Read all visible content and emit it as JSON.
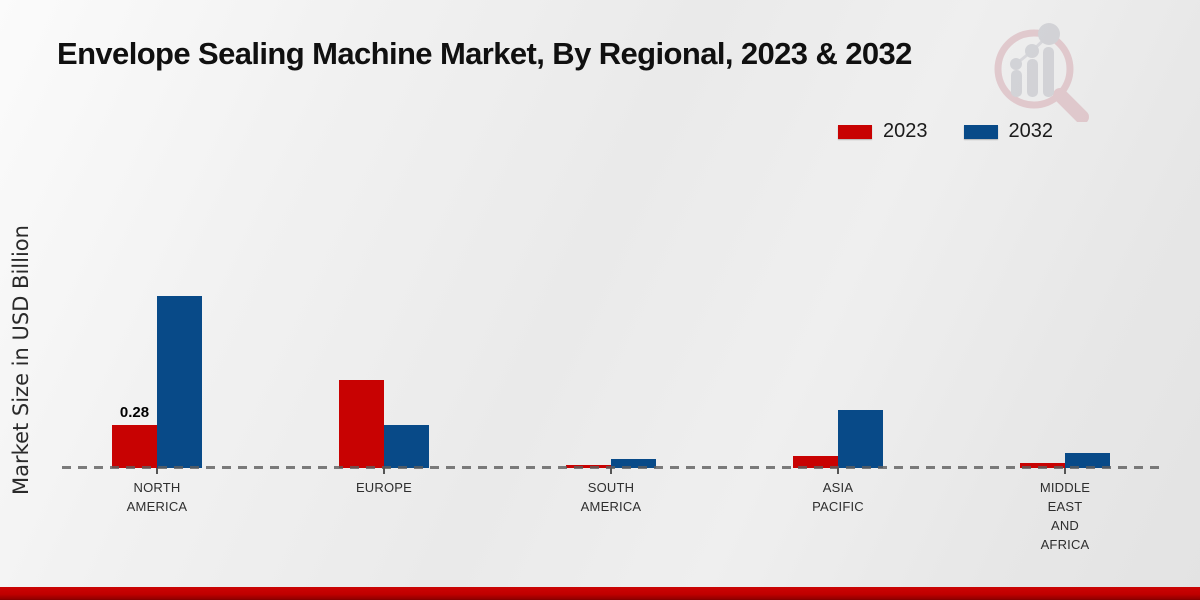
{
  "header": {
    "title": "Envelope Sealing Machine Market, By Regional, 2023 & 2032"
  },
  "watermark_name": "market-research-future-logo",
  "footer": {
    "accent_bar_color": "#c00000"
  },
  "chart_data": {
    "type": "bar",
    "title": "Envelope Sealing Machine Market, By Regional, 2023 & 2032",
    "xlabel": "",
    "ylabel": "Market Size in USD Billion",
    "unit": "USD Billion",
    "categories": [
      "NORTH AMERICA",
      "EUROPE",
      "SOUTH AMERICA",
      "ASIA PACIFIC",
      "MIDDLE EAST AND AFRICA"
    ],
    "categories_display": [
      "NORTH\nAMERICA",
      "EUROPE",
      "SOUTH\nAMERICA",
      "ASIA\nPACIFIC",
      "MIDDLE\nEAST\nAND\nAFRICA"
    ],
    "series": [
      {
        "name": "2023",
        "color": "#c80202",
        "values": [
          0.28,
          0.57,
          0.02,
          0.08,
          0.03
        ]
      },
      {
        "name": "2032",
        "color": "#084a88",
        "values": [
          1.12,
          0.28,
          0.06,
          0.38,
          0.1
        ]
      }
    ],
    "bar_labels": [
      {
        "series_index": 0,
        "category_index": 0,
        "text": "0.28"
      }
    ],
    "ylim": [
      0,
      1.25
    ],
    "y_axis_ticks_visible": false,
    "gridlines": "none",
    "baseline_style": "dashed",
    "legend_position": "top-right"
  }
}
